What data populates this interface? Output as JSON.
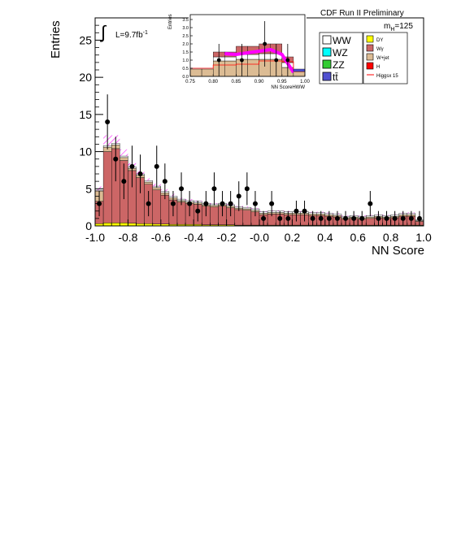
{
  "header": {
    "experiment": "CDF Run II Preliminary",
    "mass_label": "m",
    "mass_sub": "H",
    "mass_value": "=125"
  },
  "luminosity": {
    "label": "L=9.7fb",
    "exponent": "-1"
  },
  "colors": {
    "frame": "#000000",
    "wgamma": "#cc6666",
    "wjet": "#dcbc94",
    "dy": "#ffff00",
    "higgs": "#ff0000",
    "higgs_scaled": "#ff00ff",
    "signal_hatch": "#ff00ff",
    "ww": "#ffffff",
    "wz": "#00ffff",
    "zz": "#33cc33",
    "ttbar": "#5050d0",
    "points": "#000000"
  },
  "legend": {
    "left": [
      {
        "label": "WW",
        "color": "#ffffff"
      },
      {
        "label": "WZ",
        "color": "#00ffff"
      },
      {
        "label": "ZZ",
        "color": "#33cc33"
      },
      {
        "label": "tt̄",
        "color": "#5050d0"
      }
    ],
    "right": [
      {
        "label": "DY",
        "color": "#ffff00"
      },
      {
        "label": "Wγ",
        "color": "#cc6666"
      },
      {
        "label": "W+jet",
        "color": "#dcbc94"
      },
      {
        "label": "H",
        "color": "#ff0000"
      },
      {
        "label": "Higgsx 15",
        "color": "#ff0000",
        "line": true
      }
    ]
  },
  "chart_data": [
    {
      "type": "bar",
      "ylabel": "Entries",
      "xlabel": "NN Score",
      "xlim": [
        -1.0,
        1.0
      ],
      "ylim": [
        0,
        28
      ],
      "xticks": [
        -1.0,
        -0.8,
        -0.6,
        -0.4,
        -0.2,
        0.0,
        0.2,
        0.4,
        0.6,
        0.8,
        1.0
      ],
      "xtick_labels": [
        "-1.0",
        "-0.8",
        "-0.6",
        "-0.4",
        "-0.2",
        "-0.0",
        "0.2",
        "0.4",
        "0.6",
        "0.8",
        "1.0"
      ],
      "yticks": [
        0,
        5,
        10,
        15,
        20,
        25
      ],
      "ytick_labels": [
        "0",
        "5",
        "10",
        "15",
        "20",
        "25"
      ],
      "bin_edges": [
        -1.0,
        -0.95,
        -0.9,
        -0.85,
        -0.8,
        -0.75,
        -0.7,
        -0.65,
        -0.6,
        -0.55,
        -0.5,
        -0.45,
        -0.4,
        -0.35,
        -0.3,
        -0.25,
        -0.2,
        -0.15,
        -0.1,
        -0.05,
        0.0,
        0.05,
        0.1,
        0.15,
        0.2,
        0.25,
        0.3,
        0.35,
        0.4,
        0.45,
        0.5,
        0.55,
        0.6,
        0.65,
        0.7,
        0.75,
        0.8,
        0.85,
        0.9,
        0.95,
        1.0
      ],
      "series": [
        {
          "name": "DY",
          "values": [
            0.3,
            0.4,
            0.4,
            0.4,
            0.35,
            0.3,
            0.3,
            0.25,
            0.25,
            0.2,
            0.2,
            0.2,
            0.2,
            0.15,
            0.15,
            0.15,
            0.15,
            0.1,
            0.1,
            0.1,
            0.1,
            0.1,
            0.1,
            0.1,
            0.1,
            0.1,
            0.1,
            0.1,
            0.1,
            0.1,
            0.1,
            0.1,
            0.1,
            0.1,
            0.1,
            0.1,
            0.1,
            0.1,
            0.1,
            0.1
          ]
        },
        {
          "name": "Wγ",
          "values": [
            3.0,
            9.6,
            10.0,
            8.4,
            7.1,
            6.2,
            5.3,
            4.6,
            3.9,
            3.3,
            3.0,
            2.8,
            2.7,
            2.5,
            2.4,
            2.5,
            2.3,
            2.1,
            2.0,
            1.8,
            1.4,
            1.5,
            1.5,
            1.4,
            1.4,
            1.4,
            1.3,
            1.3,
            1.2,
            1.1,
            0.8,
            0.9,
            0.8,
            0.9,
            1.0,
            0.9,
            1.0,
            1.2,
            1.2,
            0.5
          ]
        },
        {
          "name": "W+jet",
          "values": [
            1.4,
            0.6,
            0.5,
            0.4,
            0.3,
            0.3,
            0.3,
            0.3,
            0.3,
            0.3,
            0.2,
            0.2,
            0.2,
            0.2,
            0.2,
            0.2,
            0.2,
            0.2,
            0.2,
            0.2,
            0.2,
            0.2,
            0.2,
            0.2,
            0.2,
            0.2,
            0.2,
            0.2,
            0.2,
            0.2,
            0.2,
            0.2,
            0.2,
            0.2,
            0.2,
            0.2,
            0.2,
            0.2,
            0.2,
            0.1
          ]
        },
        {
          "name": "WW",
          "values": [
            0.1,
            0.2,
            0.2,
            0.2,
            0.2,
            0.2,
            0.2,
            0.2,
            0.2,
            0.2,
            0.2,
            0.2,
            0.2,
            0.2,
            0.2,
            0.2,
            0.2,
            0.2,
            0.2,
            0.2,
            0.2,
            0.2,
            0.2,
            0.2,
            0.2,
            0.2,
            0.2,
            0.2,
            0.2,
            0.2,
            0.2,
            0.2,
            0.2,
            0.2,
            0.2,
            0.2,
            0.2,
            0.2,
            0.2,
            0.1
          ]
        }
      ],
      "signal_hatched": [
        0.5,
        1.4,
        1.1,
        0.9,
        0.5,
        0.4,
        0.3,
        0.3,
        0.3,
        0.3,
        0.2,
        0.2,
        0.1,
        0.1,
        0.1,
        0.1,
        0.1,
        0.1,
        0.1,
        0.1,
        0.1,
        0.1,
        0.1,
        0.1,
        0.1,
        0.1,
        0.1,
        0.1,
        0.1,
        0.1,
        0.1,
        0.1,
        0.1,
        0.1,
        0.1,
        0.1,
        0.1,
        0.1,
        0.1,
        0.1
      ],
      "data_points": {
        "x": [
          -0.975,
          -0.925,
          -0.875,
          -0.825,
          -0.775,
          -0.725,
          -0.675,
          -0.625,
          -0.575,
          -0.525,
          -0.475,
          -0.425,
          -0.375,
          -0.325,
          -0.275,
          -0.225,
          -0.175,
          -0.125,
          -0.075,
          -0.025,
          0.025,
          0.075,
          0.125,
          0.175,
          0.225,
          0.275,
          0.325,
          0.375,
          0.425,
          0.475,
          0.525,
          0.575,
          0.625,
          0.675,
          0.725,
          0.775,
          0.825,
          0.875,
          0.925,
          0.975
        ],
        "y": [
          3,
          14,
          9,
          6,
          8,
          7,
          3,
          8,
          6,
          3,
          5,
          3,
          2,
          3,
          5,
          3,
          3,
          4,
          5,
          3,
          1,
          3,
          1,
          1,
          2,
          2,
          1,
          1,
          1,
          1,
          1,
          1,
          1,
          3,
          1,
          1,
          1,
          1,
          1,
          1
        ],
        "err": [
          1.7,
          3.7,
          3.0,
          2.4,
          2.8,
          2.6,
          1.7,
          2.8,
          2.4,
          1.7,
          2.2,
          1.7,
          1.4,
          1.7,
          2.2,
          1.7,
          1.7,
          2.0,
          2.2,
          1.7,
          1.0,
          1.7,
          1.0,
          1.0,
          1.4,
          1.4,
          1.0,
          1.0,
          1.0,
          1.0,
          1.0,
          1.0,
          1.0,
          1.7,
          1.0,
          1.0,
          1.0,
          1.0,
          1.0,
          1.0
        ]
      }
    },
    {
      "type": "bar",
      "ylabel": "Entries",
      "xlabel": "NN ScoreHWW",
      "xlim": [
        0.75,
        1.0
      ],
      "ylim": [
        0,
        3.8
      ],
      "xticks": [
        0.75,
        0.8,
        0.85,
        0.9,
        0.95,
        1.0
      ],
      "xtick_labels": [
        "0.75",
        "0.80",
        "0.85",
        "0.90",
        "0.95",
        "1.00"
      ],
      "yticks": [
        0,
        0.5,
        1.0,
        1.5,
        2.0,
        2.5,
        3.0,
        3.5
      ],
      "ytick_labels": [
        "0.0",
        "0.5",
        "1.0",
        "1.5",
        "2.0",
        "2.5",
        "3.0",
        "3.5"
      ],
      "bin_edges": [
        0.75,
        0.775,
        0.8,
        0.825,
        0.85,
        0.875,
        0.9,
        0.925,
        0.95,
        0.975,
        1.0
      ],
      "series": [
        {
          "name": "W+jet",
          "values": [
            0.45,
            0.45,
            0.95,
            0.95,
            1.05,
            1.05,
            1.05,
            1.05,
            0.55,
            0.3
          ]
        },
        {
          "name": "WW",
          "values": [
            0.0,
            0.0,
            0.25,
            0.25,
            0.3,
            0.3,
            0.35,
            0.35,
            0.3,
            0.1
          ]
        },
        {
          "name": "Wγ",
          "values": [
            0.0,
            0.0,
            0.3,
            0.3,
            0.5,
            0.5,
            0.6,
            0.6,
            0.35,
            0.0
          ]
        }
      ],
      "higgs_scaled_line": {
        "x": [
          0.825,
          0.85,
          0.875,
          0.9,
          0.925,
          0.95,
          0.975
        ],
        "y": [
          1.4,
          1.35,
          1.45,
          1.55,
          1.65,
          1.35,
          0.25
        ]
      },
      "higgs_line": {
        "values": [
          0.5,
          0.5,
          0.7,
          0.7,
          0.75,
          0.75,
          0.95,
          0.95,
          0.9,
          0.3
        ]
      },
      "data_points": {
        "x": [
          0.8125,
          0.8625,
          0.9125,
          0.9375,
          0.9625
        ],
        "y": [
          1.0,
          1.0,
          2.0,
          1.0,
          1.0
        ],
        "err": [
          1.0,
          1.0,
          1.4,
          1.0,
          1.0
        ]
      }
    }
  ]
}
